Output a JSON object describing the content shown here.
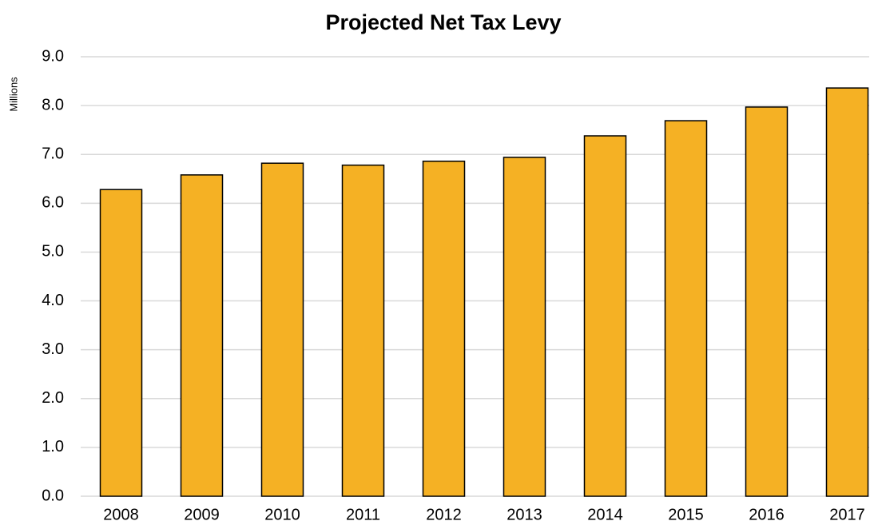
{
  "chart_data": {
    "type": "bar",
    "title": "Projected Net Tax Levy",
    "y_label": "Millions",
    "categories": [
      "2008",
      "2009",
      "2010",
      "2011",
      "2012",
      "2013",
      "2014",
      "2015",
      "2016",
      "2017"
    ],
    "values": [
      6.28,
      6.58,
      6.82,
      6.78,
      6.86,
      6.94,
      7.38,
      7.69,
      7.97,
      8.36
    ],
    "color": "#f5b124",
    "ylim": [
      0,
      9
    ],
    "yticks": [
      {
        "value": 0,
        "label": "0.0"
      },
      {
        "value": 1,
        "label": "1.0"
      },
      {
        "value": 2,
        "label": "2.0"
      },
      {
        "value": 3,
        "label": "3.0"
      },
      {
        "value": 4,
        "label": "4.0"
      },
      {
        "value": 5,
        "label": "5.0"
      },
      {
        "value": 6,
        "label": "6.0"
      },
      {
        "value": 7,
        "label": "7.0"
      },
      {
        "value": 8,
        "label": "8.0"
      },
      {
        "value": 9,
        "label": "9.0"
      }
    ],
    "grid": true
  }
}
